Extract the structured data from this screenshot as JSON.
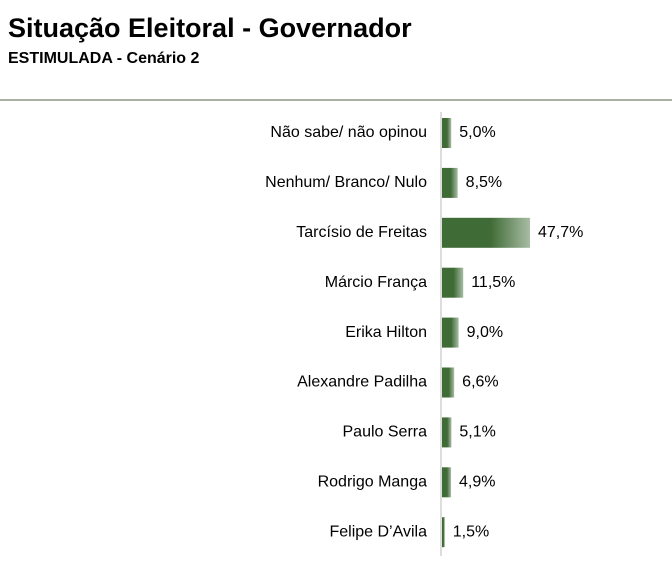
{
  "chart_data": {
    "type": "bar",
    "orientation": "horizontal",
    "title": "Situação Eleitoral - Governador",
    "subtitle": "ESTIMULADA - Cenário 2",
    "categories": [
      "Não sabe/ não opinou",
      "Nenhum/ Branco/ Nulo",
      "Tarcísio de Freitas",
      "Márcio França",
      "Erika Hilton",
      "Alexandre Padilha",
      "Paulo Serra",
      "Rodrigo Manga",
      "Felipe D’Avila"
    ],
    "values": [
      5.0,
      8.5,
      47.7,
      11.5,
      9.0,
      6.6,
      5.1,
      4.9,
      1.5
    ],
    "value_labels": [
      "5,0%",
      "8,5%",
      "47,7%",
      "11,5%",
      "9,0%",
      "6,6%",
      "5,1%",
      "4,9%",
      "1,5%"
    ],
    "color": "#3f6b36"
  }
}
